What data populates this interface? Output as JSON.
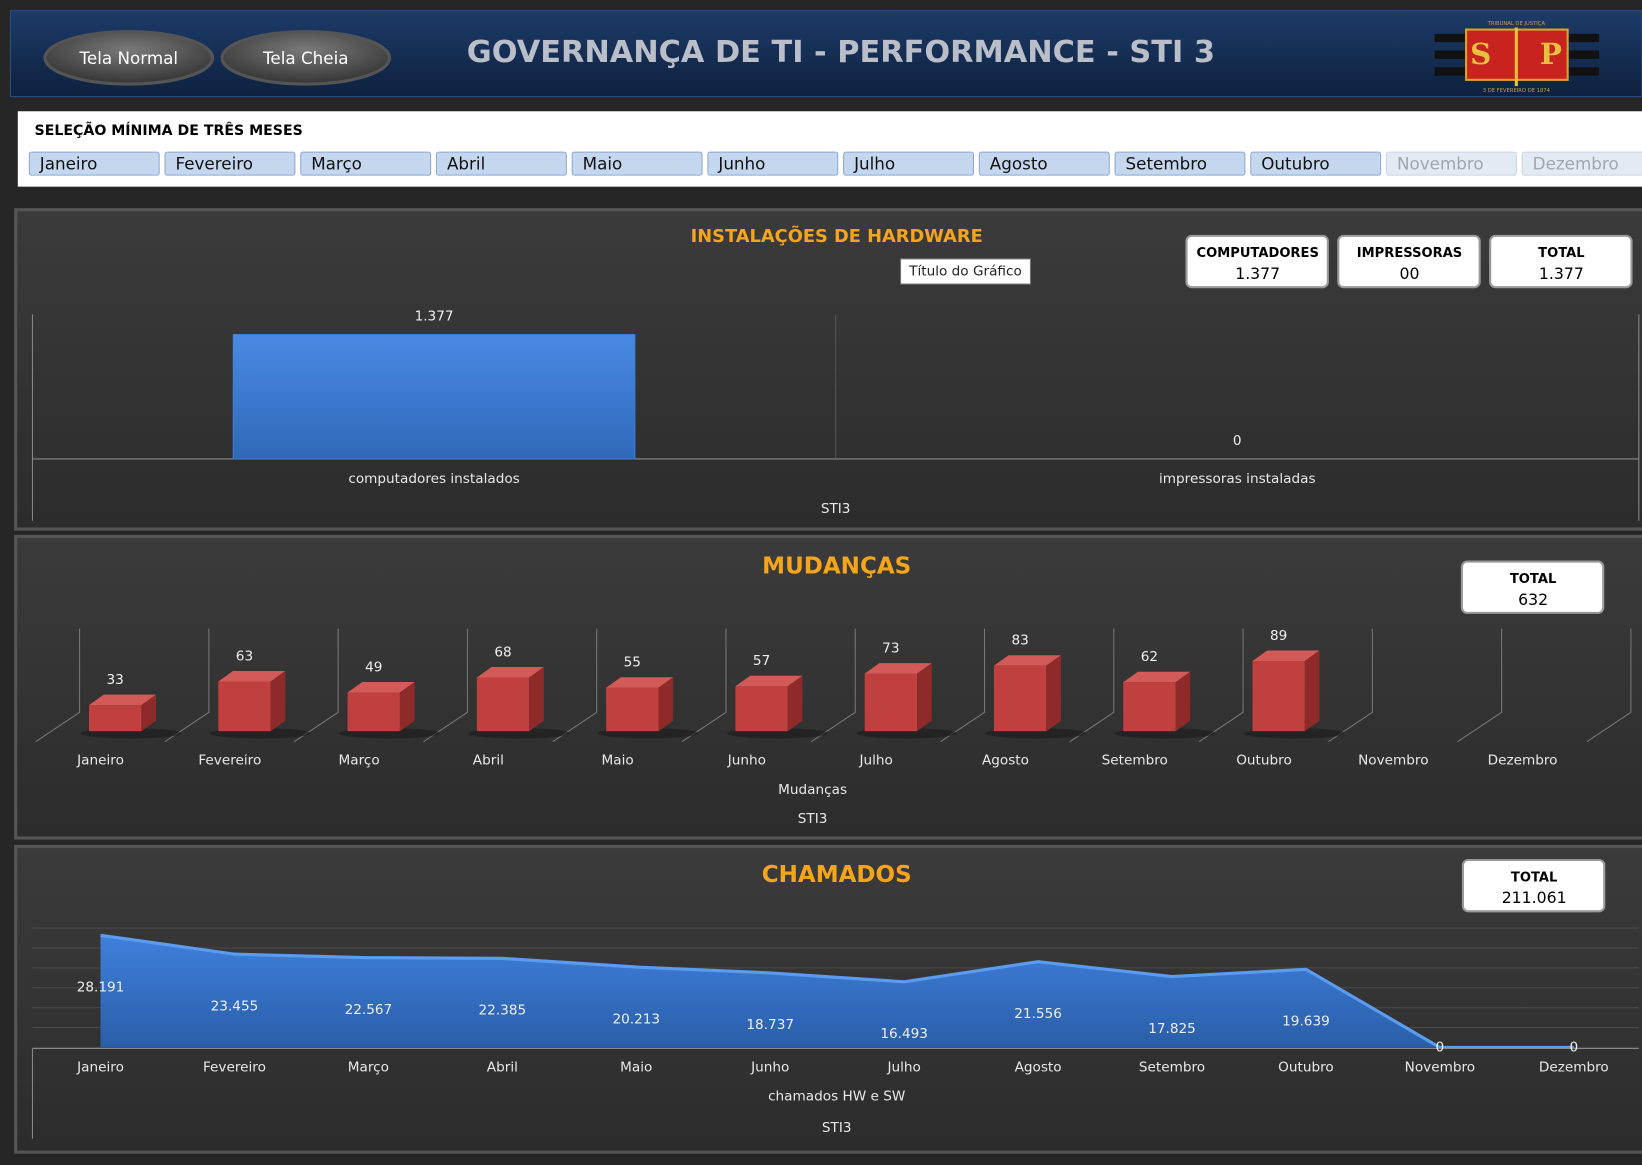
{
  "header": {
    "buttons": [
      "Tela Normal",
      "Tela Cheia"
    ],
    "title": "GOVERNANÇA DE TI - PERFORMANCE - STI 3",
    "logo": {
      "top": "TRIBUNAL DE JUSTIÇA",
      "left": "S",
      "right": "P",
      "bottom": "3 DE FEVEREIRO DE 1874"
    }
  },
  "slicer": {
    "title": "SELEÇÃO MÍNIMA DE TRÊS MESES",
    "months": [
      "Janeiro",
      "Fevereiro",
      "Março",
      "Abril",
      "Maio",
      "Junho",
      "Julho",
      "Agosto",
      "Setembro",
      "Outubro",
      "Novembro",
      "Dezembro"
    ],
    "selected": [
      true,
      true,
      true,
      true,
      true,
      true,
      true,
      true,
      true,
      true,
      false,
      false
    ]
  },
  "panels": [
    {
      "title": "INSTALAÇÕES DE HARDWARE",
      "tooltip": "Título do Gráfico",
      "cards": [
        {
          "label": "COMPUTADORES",
          "value": "1.377"
        },
        {
          "label": "IMPRESSORAS",
          "value": "00"
        },
        {
          "label": "TOTAL",
          "value": "1.377"
        }
      ],
      "chart": {
        "type": "bar",
        "categories": [
          "computadores instalados",
          "impressoras instaladas"
        ],
        "values": [
          1377,
          0
        ],
        "value_labels": [
          "1.377",
          "0"
        ],
        "group_label": "STI3",
        "color": "#3f7fd6",
        "ylim": [
          0,
          1600
        ]
      }
    },
    {
      "title": "MUDANÇAS",
      "cards": [
        {
          "label": "TOTAL",
          "value": "632"
        }
      ],
      "chart": {
        "type": "bar3d",
        "categories": [
          "Janeiro",
          "Fevereiro",
          "Março",
          "Abril",
          "Maio",
          "Junho",
          "Julho",
          "Agosto",
          "Setembro",
          "Outubro",
          "Novembro",
          "Dezembro"
        ],
        "values": [
          33,
          63,
          49,
          68,
          55,
          57,
          73,
          83,
          62,
          89,
          null,
          null
        ],
        "series_name": "Mudanças",
        "group_label": "STI3",
        "color": "#c0403f",
        "ylim": [
          0,
          130
        ]
      }
    },
    {
      "title": "CHAMADOS",
      "cards": [
        {
          "label": "TOTAL",
          "value": "211.061"
        }
      ],
      "chart": {
        "type": "area",
        "categories": [
          "Janeiro",
          "Fevereiro",
          "Março",
          "Abril",
          "Maio",
          "Junho",
          "Julho",
          "Agosto",
          "Setembro",
          "Outubro",
          "Novembro",
          "Dezembro"
        ],
        "values": [
          28191,
          23455,
          22567,
          22385,
          20213,
          18737,
          16493,
          21556,
          17825,
          19639,
          0,
          0
        ],
        "value_labels": [
          "28.191",
          "23.455",
          "22.567",
          "22.385",
          "20.213",
          "18.737",
          "16.493",
          "21.556",
          "17.825",
          "19.639",
          "0",
          "0"
        ],
        "series_name": "chamados HW e SW",
        "group_label": "STI3",
        "color": "#3f7fd6",
        "ylim": [
          0,
          30000
        ],
        "yticks": [
          0,
          5000,
          10000,
          15000,
          20000,
          25000,
          30000
        ],
        "grid": true
      }
    }
  ]
}
